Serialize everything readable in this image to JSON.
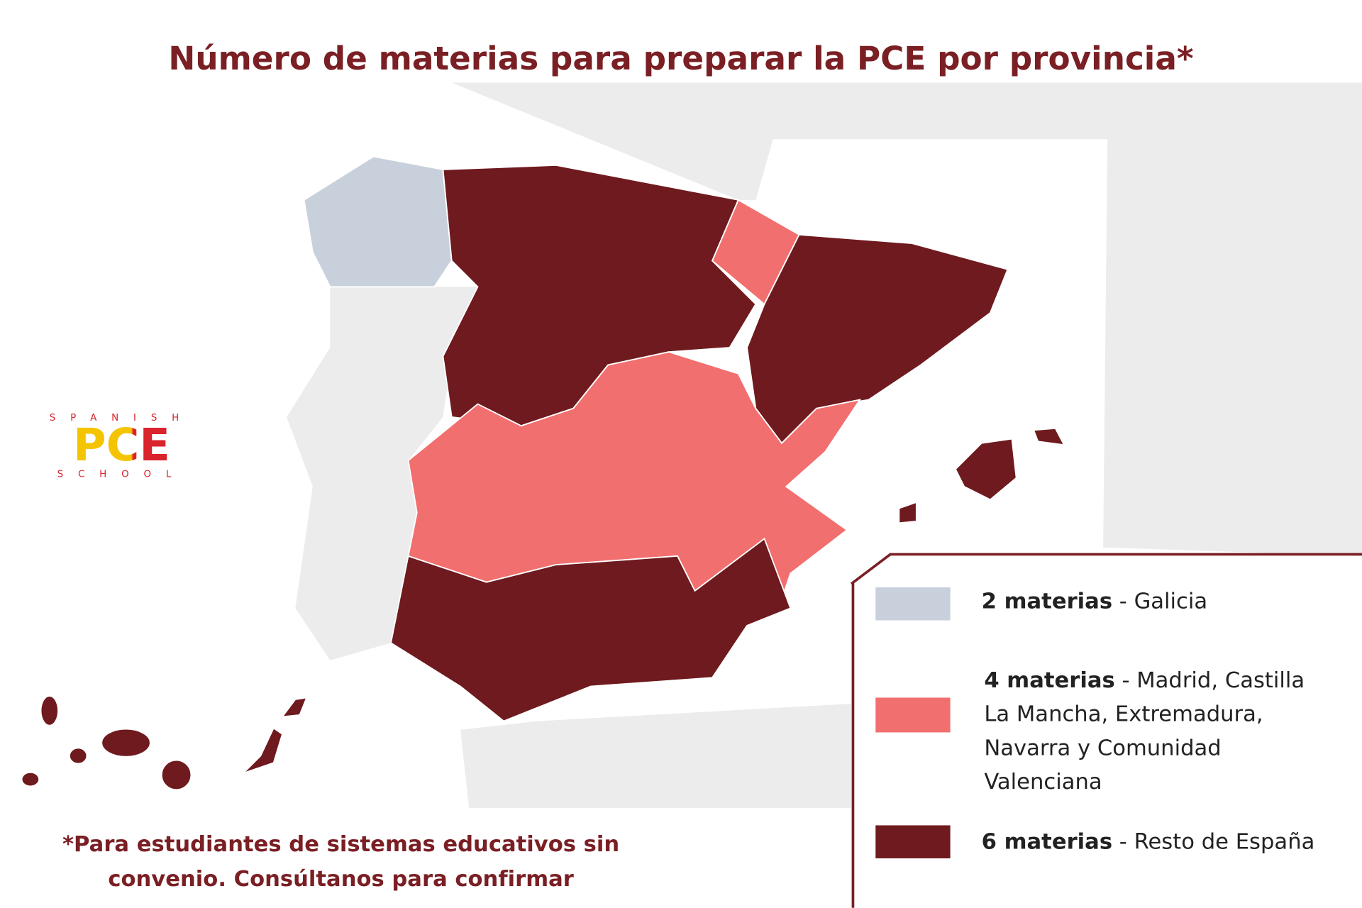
{
  "title": "Número de materias para preparar la PCE por provincia*",
  "logo": {
    "top": "SPANISH",
    "main": "PCE",
    "bottom": "SCHOOL"
  },
  "legend": [
    {
      "count": "2 materias",
      "regions": "- Galicia",
      "color": "#c8d0dc"
    },
    {
      "count": "4 materias",
      "regions": "- Madrid, Castilla La Mancha, Extremadura, Navarra y Comunidad Valenciana",
      "color": "#f26f6f"
    },
    {
      "count": "6 materias",
      "regions": "- Resto de España",
      "color": "#6e1a1e"
    }
  ],
  "footnote": "*Para estudiantes de sistemas educativos sin convenio. Consúltanos para confirmar"
}
